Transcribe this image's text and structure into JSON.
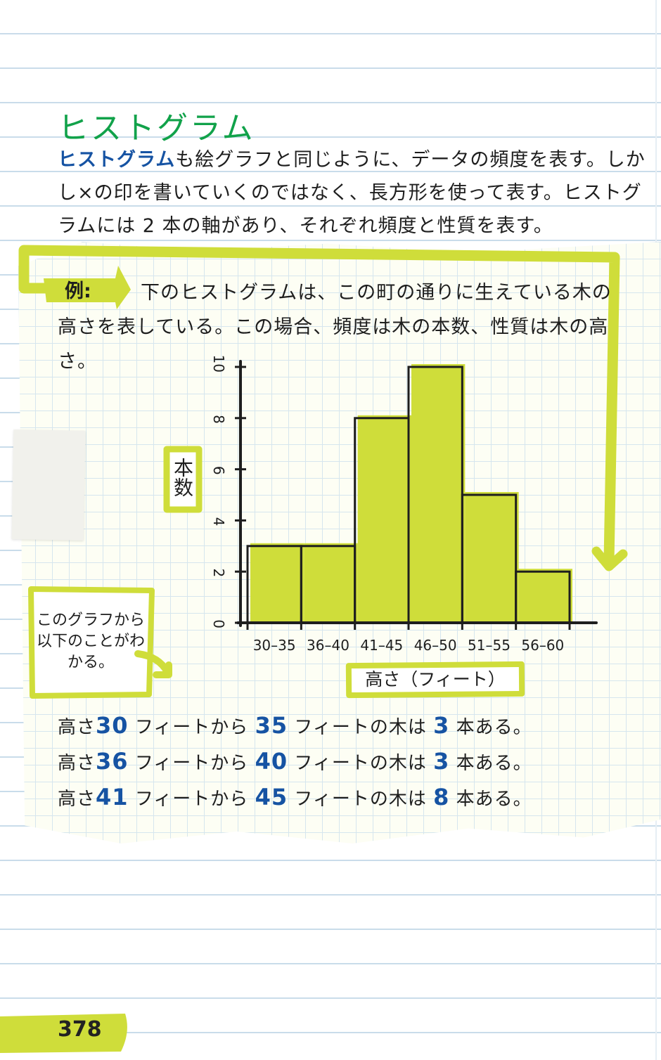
{
  "section": {
    "title": "ヒストグラム",
    "intro_term": "ヒストグラム",
    "intro_rest": "も絵グラフと同じように、データの頻度を表す。しかし×の印を書いていくのではなく、長方形を使って表す。ヒストグラムには 2 本の軸があり、それぞれ頻度と性質を表す。"
  },
  "example": {
    "label": "例:",
    "text": "下のヒストグラムは、この町の通りに生えている木の高さを表している。この場合、頻度は木の本数、性質は木の高さ。"
  },
  "note": {
    "text": "このグラフから以下のことがわかる。"
  },
  "chart_data": {
    "type": "bar",
    "title": "",
    "xlabel": "高さ（フィート）",
    "ylabel": "本数",
    "categories": [
      "30–35",
      "36–40",
      "41–45",
      "46–50",
      "51–55",
      "56–60"
    ],
    "values": [
      3,
      3,
      8,
      10,
      5,
      2
    ],
    "ylim": [
      0,
      10
    ],
    "yticks": [
      "0",
      "2",
      "4",
      "6",
      "8",
      "10"
    ],
    "grid": false,
    "bar_color": "#cfdd3a"
  },
  "facts": [
    {
      "p1": "高さ",
      "n1": "30",
      "p2": "フィートから",
      "n2": "35",
      "p3": "フィートの木は",
      "n3": "3",
      "p4": "本ある。"
    },
    {
      "p1": "高さ",
      "n1": "36",
      "p2": "フィートから",
      "n2": "40",
      "p3": "フィートの木は",
      "n3": "3",
      "p4": "本ある。"
    },
    {
      "p1": "高さ",
      "n1": "41",
      "p2": "フィートから",
      "n2": "45",
      "p3": "フィートの木は",
      "n3": "8",
      "p4": "本ある。"
    }
  ],
  "page": {
    "number": "378"
  },
  "colors": {
    "title": "#11a24a",
    "accent": "#1653a3",
    "highlight": "#cfdd3a"
  }
}
